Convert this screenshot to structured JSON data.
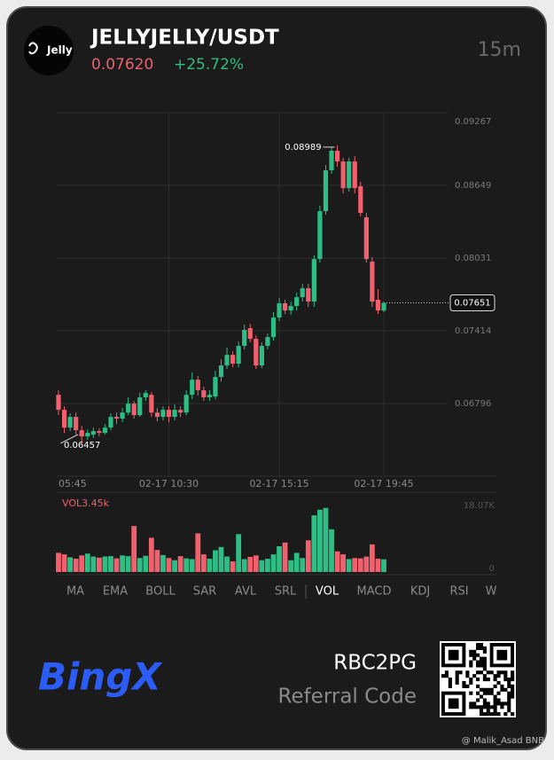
{
  "header": {
    "logo": "Jelly",
    "pair": "JELLYJELLY/USDT",
    "price": "0.07620",
    "change": "+25.72%",
    "interval": "15m"
  },
  "chart_data": {
    "type": "candlestick",
    "categories": [
      "05:45",
      null,
      null,
      null,
      null,
      null,
      null,
      null,
      null,
      null,
      null,
      null,
      null,
      null,
      null,
      null,
      null,
      null,
      null,
      "02-17 10:30",
      null,
      null,
      null,
      null,
      null,
      null,
      null,
      null,
      null,
      null,
      null,
      null,
      null,
      null,
      null,
      null,
      null,
      null,
      "02-17 15:15",
      null,
      null,
      null,
      null,
      null,
      null,
      null,
      null,
      null,
      null,
      null,
      null,
      null,
      null,
      null,
      null,
      null,
      "02-17 19:45"
    ],
    "open": [
      0.0687,
      0.06742,
      0.06591,
      0.06682,
      0.06569,
      0.06516,
      0.06531,
      0.06561,
      0.06546,
      0.06591,
      0.06682,
      0.06667,
      0.06719,
      0.06795,
      0.06697,
      0.06848,
      0.0687,
      0.06719,
      0.06682,
      0.06742,
      0.06682,
      0.06742,
      0.06719,
      0.0687,
      0.06998,
      0.06908,
      0.06848,
      0.06855,
      0.07021,
      0.07119,
      0.07209,
      0.07134,
      0.07285,
      0.07436,
      0.07345,
      0.07119,
      0.07285,
      0.0736,
      0.07526,
      0.07647,
      0.07586,
      0.07624,
      0.07699,
      0.07775,
      0.07662,
      0.08023,
      0.0843,
      0.08777,
      0.08943,
      0.08852,
      0.08626,
      0.08852,
      0.08641,
      0.08378,
      0.08001,
      0.07677,
      0.07586
    ],
    "high": [
      0.06908,
      0.06772,
      0.06712,
      0.06719,
      0.06606,
      0.06576,
      0.06591,
      0.06584,
      0.06621,
      0.06712,
      0.06719,
      0.06757,
      0.06848,
      0.06817,
      0.06885,
      0.06908,
      0.06893,
      0.06757,
      0.06772,
      0.06772,
      0.06787,
      0.06772,
      0.06908,
      0.07059,
      0.07029,
      0.06938,
      0.06908,
      0.07074,
      0.07172,
      0.0727,
      0.0724,
      0.07323,
      0.07466,
      0.07473,
      0.07375,
      0.07315,
      0.0739,
      0.07571,
      0.07692,
      0.07677,
      0.07662,
      0.07737,
      0.07812,
      0.07812,
      0.08054,
      0.08476,
      0.08822,
      0.08973,
      0.08989,
      0.08883,
      0.08883,
      0.08898,
      0.08679,
      0.08415,
      0.08038,
      0.07767,
      0.07662
    ],
    "low": [
      0.06697,
      0.06546,
      0.06561,
      0.06531,
      0.06457,
      0.06486,
      0.06501,
      0.06516,
      0.06531,
      0.06569,
      0.06621,
      0.06637,
      0.06697,
      0.06667,
      0.06682,
      0.06817,
      0.06682,
      0.06644,
      0.06652,
      0.06637,
      0.06652,
      0.06682,
      0.06697,
      0.06832,
      0.06863,
      0.06817,
      0.06817,
      0.06832,
      0.06983,
      0.07089,
      0.07104,
      0.07104,
      0.07255,
      0.07315,
      0.07089,
      0.07096,
      0.07255,
      0.0733,
      0.07496,
      0.07556,
      0.07549,
      0.07586,
      0.07662,
      0.07616,
      0.07616,
      0.07993,
      0.084,
      0.08747,
      0.08807,
      0.08581,
      0.08596,
      0.08581,
      0.08385,
      0.07993,
      0.07616,
      0.07556,
      0.07571
    ],
    "close": [
      0.06742,
      0.06591,
      0.06682,
      0.06569,
      0.06516,
      0.06546,
      0.06561,
      0.06546,
      0.06591,
      0.06682,
      0.06667,
      0.06719,
      0.06795,
      0.06697,
      0.06848,
      0.06885,
      0.06719,
      0.06682,
      0.06742,
      0.06682,
      0.06742,
      0.06719,
      0.0687,
      0.06998,
      0.06908,
      0.06848,
      0.0687,
      0.07021,
      0.07119,
      0.07209,
      0.07134,
      0.07285,
      0.07421,
      0.07345,
      0.07119,
      0.07285,
      0.0736,
      0.07526,
      0.07647,
      0.07586,
      0.07624,
      0.07699,
      0.07775,
      0.07662,
      0.08023,
      0.0843,
      0.08777,
      0.08943,
      0.08852,
      0.08626,
      0.08852,
      0.08626,
      0.08415,
      0.08023,
      0.07662,
      0.07586,
      0.07651
    ],
    "up_color": "#2ebd85",
    "down_color": "#f0616d",
    "ylim": [
      0.06178,
      0.09267
    ],
    "yticks": [
      0.06796,
      0.07414,
      0.08031,
      0.08649,
      0.09267
    ],
    "grid": true,
    "volume": {
      "label": "VOL3.45k",
      "values": [
        5.2,
        4.8,
        4.0,
        3.6,
        4.5,
        5.0,
        4.2,
        3.9,
        4.2,
        4.3,
        3.7,
        4.5,
        4.3,
        12.5,
        3.8,
        4.4,
        9.3,
        6.0,
        4.6,
        3.8,
        3.2,
        4.3,
        3.7,
        3.5,
        10.5,
        4.8,
        3.6,
        5.9,
        6.8,
        4.2,
        2.9,
        10.3,
        3.5,
        4.1,
        4.5,
        3.2,
        3.6,
        4.8,
        7.0,
        8.0,
        3.2,
        5.2,
        3.8,
        8.6,
        15.4,
        16.9,
        17.4,
        11.6,
        5.6,
        4.8,
        3.5,
        3.8,
        3.7,
        4.2,
        7.5,
        3.6,
        3.45
      ],
      "ylim": [
        0,
        18.07
      ],
      "yticks": [
        0,
        {
          "value": 18.07,
          "label": "18.07K"
        }
      ]
    }
  },
  "indicators": [
    "MA",
    "EMA",
    "BOLL",
    "SAR",
    "AVL",
    "SRL",
    "VOL",
    "MACD",
    "KDJ",
    "RSI",
    "W"
  ],
  "active_indicator": "VOL",
  "footer": {
    "brand": "BingX",
    "code": "RBC2PG",
    "code_label": "Referral Code",
    "watermark": "@ Malik_Asad BNB"
  }
}
